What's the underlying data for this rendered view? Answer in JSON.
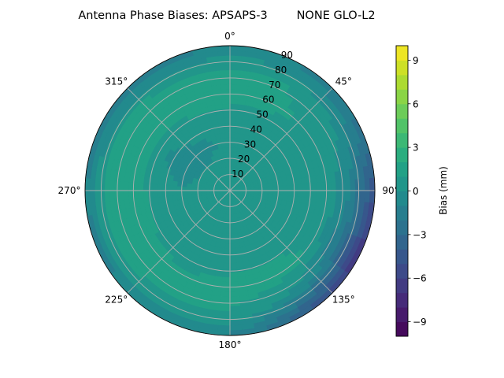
{
  "chart_data": {
    "type": "heatmap",
    "subtype": "polar-contourf",
    "title": "Antenna Phase Biases: APSAPS-3        NONE GLO-L2",
    "colormap": "viridis",
    "colorbar": {
      "label": "Bias (mm)",
      "range": [
        -10,
        10
      ],
      "levels": 20,
      "ticks": [
        "−9",
        "−6",
        "−3",
        "0",
        "3",
        "6",
        "9"
      ],
      "tick_values": [
        -9,
        -6,
        -3,
        0,
        3,
        6,
        9
      ]
    },
    "angular_ticks": [
      "0°",
      "45°",
      "90°",
      "135°",
      "180°",
      "225°",
      "270°",
      "315°"
    ],
    "angular_tick_values": [
      0,
      45,
      90,
      135,
      180,
      225,
      270,
      315
    ],
    "radial_ticks": [
      "10",
      "20",
      "30",
      "40",
      "50",
      "60",
      "70",
      "80",
      "90"
    ],
    "radial_tick_values": [
      10,
      20,
      30,
      40,
      50,
      60,
      70,
      80,
      90
    ],
    "radial_range": [
      0,
      90
    ],
    "direction": "clockwise",
    "zero_location": "north",
    "grid": true,
    "zenith": [
      0,
      15,
      30,
      45,
      60,
      75,
      90
    ],
    "azimuth": [
      0,
      30,
      60,
      90,
      120,
      150,
      180,
      210,
      240,
      270,
      300,
      330
    ],
    "bias_mm": [
      [
        0.5,
        0.5,
        0.5,
        0.5,
        0.5,
        0.5,
        0.5,
        0.5,
        0.5,
        0.5,
        0.5,
        0.5
      ],
      [
        0.5,
        0.5,
        0.5,
        0.5,
        1.0,
        1.0,
        0.5,
        0.5,
        0.5,
        0.5,
        0.3,
        0.3
      ],
      [
        0.3,
        0.3,
        0.3,
        0.3,
        0.5,
        0.5,
        0.3,
        0.3,
        0.3,
        0.0,
        -0.6,
        -0.3
      ],
      [
        0.5,
        0.5,
        0.3,
        0.3,
        0.5,
        0.8,
        0.5,
        0.3,
        0.5,
        0.5,
        0.0,
        0.5
      ],
      [
        1.5,
        1.2,
        0.8,
        0.5,
        0.8,
        1.5,
        1.5,
        1.2,
        1.5,
        1.5,
        1.5,
        1.5
      ],
      [
        1.2,
        1.0,
        0.0,
        -1.0,
        -2.0,
        0.0,
        1.0,
        1.0,
        1.5,
        1.5,
        1.5,
        1.2
      ],
      [
        -1.0,
        -1.2,
        -2.0,
        -5.0,
        -7.0,
        -4.0,
        -1.0,
        -0.5,
        -1.5,
        -1.2,
        -1.8,
        -1.5
      ]
    ]
  }
}
